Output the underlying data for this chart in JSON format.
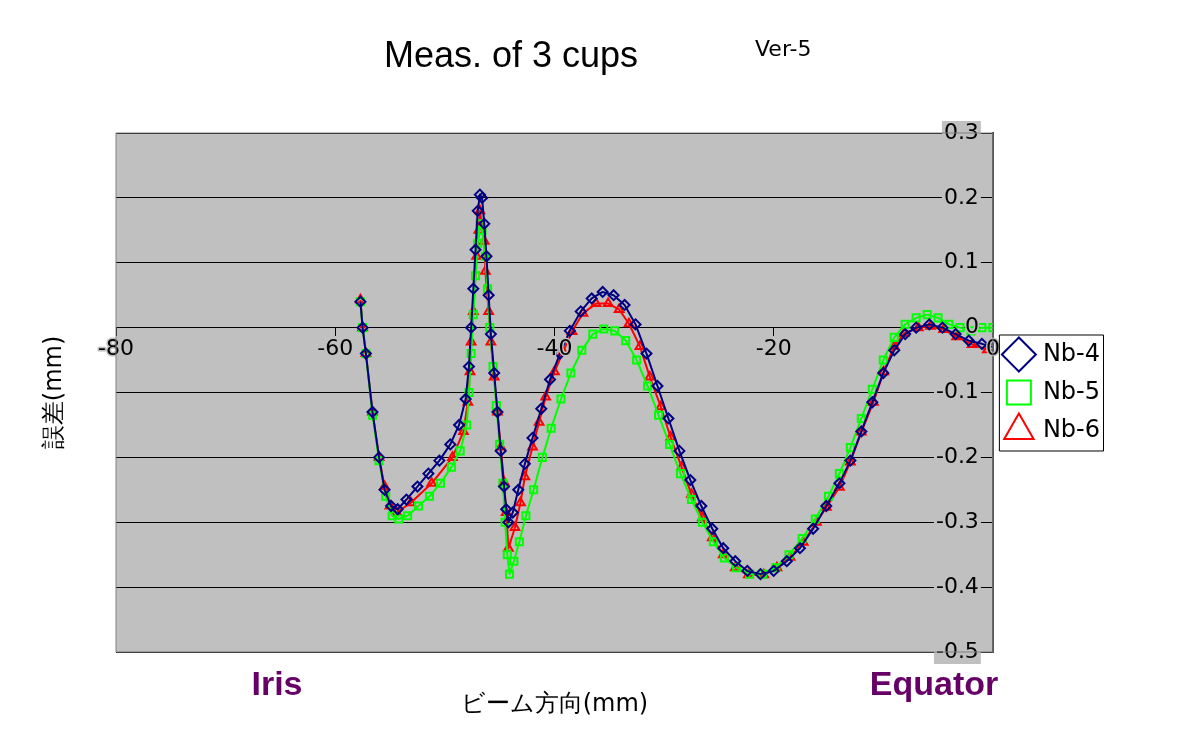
{
  "chart_data": {
    "type": "line",
    "title": "Meas. of 3 cups",
    "xlabel": "ビーム方向(mm)",
    "ylabel": "誤差(mm)",
    "annotations": [
      "Ver-5",
      "Iris",
      "Equator"
    ],
    "xlim": [
      -80,
      0
    ],
    "xticks": [
      -80,
      -60,
      -40,
      -20,
      0
    ],
    "ylim": [
      -0.5,
      0.3
    ],
    "yticks": [
      -0.5,
      -0.4,
      -0.3,
      -0.2,
      -0.1,
      0,
      0.1,
      0.2,
      0.3
    ],
    "grid": "y",
    "legend": "right",
    "line_style": "solid",
    "series": [
      {
        "name": "Nb-4",
        "color": "#000080",
        "marker": "diamond",
        "x": [
          -57.7,
          -57.5,
          -57.2,
          -56.6,
          -56.0,
          -55.5,
          -54.9,
          -54.3,
          -53.5,
          -52.5,
          -51.5,
          -50.5,
          -49.5,
          -48.7,
          -48.1,
          -47.8,
          -47.6,
          -47.4,
          -47.2,
          -47.0,
          -46.8,
          -46.6,
          -46.4,
          -46.2,
          -46.0,
          -45.8,
          -45.5,
          -45.2,
          -44.9,
          -44.6,
          -44.4,
          -44.2,
          -43.8,
          -43.3,
          -42.7,
          -42.0,
          -41.2,
          -40.4,
          -39.5,
          -38.6,
          -37.6,
          -36.6,
          -35.6,
          -34.6,
          -33.6,
          -32.6,
          -31.6,
          -30.6,
          -29.6,
          -28.6,
          -27.6,
          -26.6,
          -25.6,
          -24.6,
          -23.5,
          -22.4,
          -21.2,
          -20.0,
          -18.8,
          -17.6,
          -16.4,
          -15.2,
          -14.0,
          -13.0,
          -12.0,
          -11.0,
          -10.0,
          -9.0,
          -8.0,
          -7.0,
          -5.8,
          -4.6,
          -3.4,
          -2.2,
          -1.0,
          0.0
        ],
        "values": [
          0.04,
          0.0,
          -0.04,
          -0.13,
          -0.2,
          -0.25,
          -0.275,
          -0.28,
          -0.265,
          -0.245,
          -0.225,
          -0.205,
          -0.18,
          -0.15,
          -0.11,
          -0.06,
          0.0,
          0.06,
          0.12,
          0.18,
          0.205,
          0.2,
          0.16,
          0.11,
          0.05,
          -0.01,
          -0.07,
          -0.13,
          -0.19,
          -0.245,
          -0.28,
          -0.3,
          -0.285,
          -0.25,
          -0.21,
          -0.17,
          -0.125,
          -0.08,
          -0.04,
          -0.005,
          0.025,
          0.045,
          0.055,
          0.05,
          0.035,
          0.005,
          -0.04,
          -0.09,
          -0.14,
          -0.19,
          -0.235,
          -0.275,
          -0.31,
          -0.34,
          -0.36,
          -0.375,
          -0.38,
          -0.375,
          -0.36,
          -0.34,
          -0.31,
          -0.275,
          -0.24,
          -0.205,
          -0.16,
          -0.115,
          -0.07,
          -0.035,
          -0.01,
          0.0,
          0.005,
          0.0,
          -0.01,
          -0.02,
          -0.025,
          -0.03
        ]
      },
      {
        "name": "Nb-5",
        "color": "#00ff00",
        "marker": "square",
        "x": [
          -57.7,
          -57.5,
          -57.2,
          -56.6,
          -56.0,
          -55.4,
          -54.8,
          -54.2,
          -53.4,
          -52.4,
          -51.4,
          -50.4,
          -49.4,
          -48.6,
          -48.0,
          -47.8,
          -47.6,
          -47.4,
          -47.2,
          -47.0,
          -46.8,
          -46.6,
          -46.3,
          -46.1,
          -45.9,
          -45.6,
          -45.3,
          -45.0,
          -44.7,
          -44.5,
          -44.3,
          -44.1,
          -43.7,
          -43.2,
          -42.6,
          -41.9,
          -41.1,
          -40.3,
          -39.4,
          -38.5,
          -37.5,
          -36.5,
          -35.5,
          -34.5,
          -33.5,
          -32.5,
          -31.5,
          -30.5,
          -29.5,
          -28.5,
          -27.5,
          -26.5,
          -25.5,
          -24.5,
          -23.4,
          -22.2,
          -21.0,
          -19.8,
          -18.6,
          -17.4,
          -16.2,
          -15.0,
          -14.0,
          -13.0,
          -12.0,
          -11.0,
          -10.0,
          -9.0,
          -8.0,
          -7.0,
          -6.0,
          -5.0,
          -4.0,
          -3.0,
          -2.0,
          -1.0,
          0.0
        ],
        "values": [
          0.04,
          0.0,
          -0.04,
          -0.135,
          -0.205,
          -0.26,
          -0.29,
          -0.295,
          -0.29,
          -0.275,
          -0.26,
          -0.24,
          -0.215,
          -0.19,
          -0.15,
          -0.1,
          -0.04,
          0.02,
          0.08,
          0.13,
          0.16,
          0.15,
          0.11,
          0.06,
          0.0,
          -0.06,
          -0.12,
          -0.18,
          -0.24,
          -0.3,
          -0.35,
          -0.38,
          -0.36,
          -0.33,
          -0.29,
          -0.25,
          -0.2,
          -0.155,
          -0.11,
          -0.07,
          -0.035,
          -0.01,
          -0.002,
          -0.005,
          -0.02,
          -0.05,
          -0.09,
          -0.135,
          -0.18,
          -0.225,
          -0.265,
          -0.3,
          -0.33,
          -0.355,
          -0.37,
          -0.38,
          -0.38,
          -0.37,
          -0.35,
          -0.325,
          -0.295,
          -0.26,
          -0.225,
          -0.185,
          -0.14,
          -0.095,
          -0.05,
          -0.015,
          0.005,
          0.015,
          0.02,
          0.015,
          0.005,
          0.0,
          -0.005,
          0.0,
          0.0
        ]
      },
      {
        "name": "Nb-6",
        "color": "#ff0000",
        "marker": "triangle",
        "x": [
          -57.7,
          -57.5,
          -57.2,
          -56.6,
          -56.0,
          -55.5,
          -55.0,
          -54.4,
          -53.1,
          -51.2,
          -49.3,
          -48.3,
          -47.9,
          -47.7,
          -47.6,
          -47.4,
          -47.1,
          -46.9,
          -46.8,
          -46.4,
          -46.3,
          -46.0,
          -45.8,
          -45.5,
          -45.2,
          -44.9,
          -44.6,
          -44.4,
          -44.2,
          -43.6,
          -43.1,
          -42.7,
          -42.0,
          -41.4,
          -40.8,
          -40.0,
          -39.2,
          -38.4,
          -37.4,
          -36.2,
          -35.1,
          -34.1,
          -33.2,
          -32.2,
          -31.3,
          -30.3,
          -29.4,
          -28.4,
          -27.5,
          -26.5,
          -25.6,
          -24.6,
          -23.5,
          -22.3,
          -20.9,
          -19.7,
          -18.5,
          -17.3,
          -16.1,
          -15.2,
          -14.0,
          -13.0,
          -12.0,
          -10.9,
          -9.95,
          -9.0,
          -8.1,
          -6.8,
          -5.7,
          -4.5,
          -3.3,
          -1.9,
          -0.5
        ],
        "values": [
          0.043,
          0.0,
          -0.04,
          -0.13,
          -0.2,
          -0.245,
          -0.275,
          -0.285,
          -0.27,
          -0.24,
          -0.2,
          -0.16,
          -0.115,
          -0.068,
          -0.022,
          0.025,
          0.11,
          0.15,
          0.18,
          0.133,
          0.087,
          0.025,
          -0.022,
          -0.076,
          -0.13,
          -0.184,
          -0.238,
          -0.285,
          -0.34,
          -0.308,
          -0.27,
          -0.23,
          -0.184,
          -0.146,
          -0.107,
          -0.068,
          -0.037,
          -0.006,
          0.022,
          0.037,
          0.037,
          0.028,
          0.006,
          -0.029,
          -0.076,
          -0.122,
          -0.169,
          -0.215,
          -0.257,
          -0.293,
          -0.324,
          -0.35,
          -0.37,
          -0.381,
          -0.381,
          -0.37,
          -0.354,
          -0.331,
          -0.3,
          -0.277,
          -0.246,
          -0.207,
          -0.161,
          -0.115,
          -0.068,
          -0.029,
          -0.009,
          0.0,
          0.002,
          -0.003,
          -0.014,
          -0.026,
          -0.034
        ]
      }
    ]
  }
}
